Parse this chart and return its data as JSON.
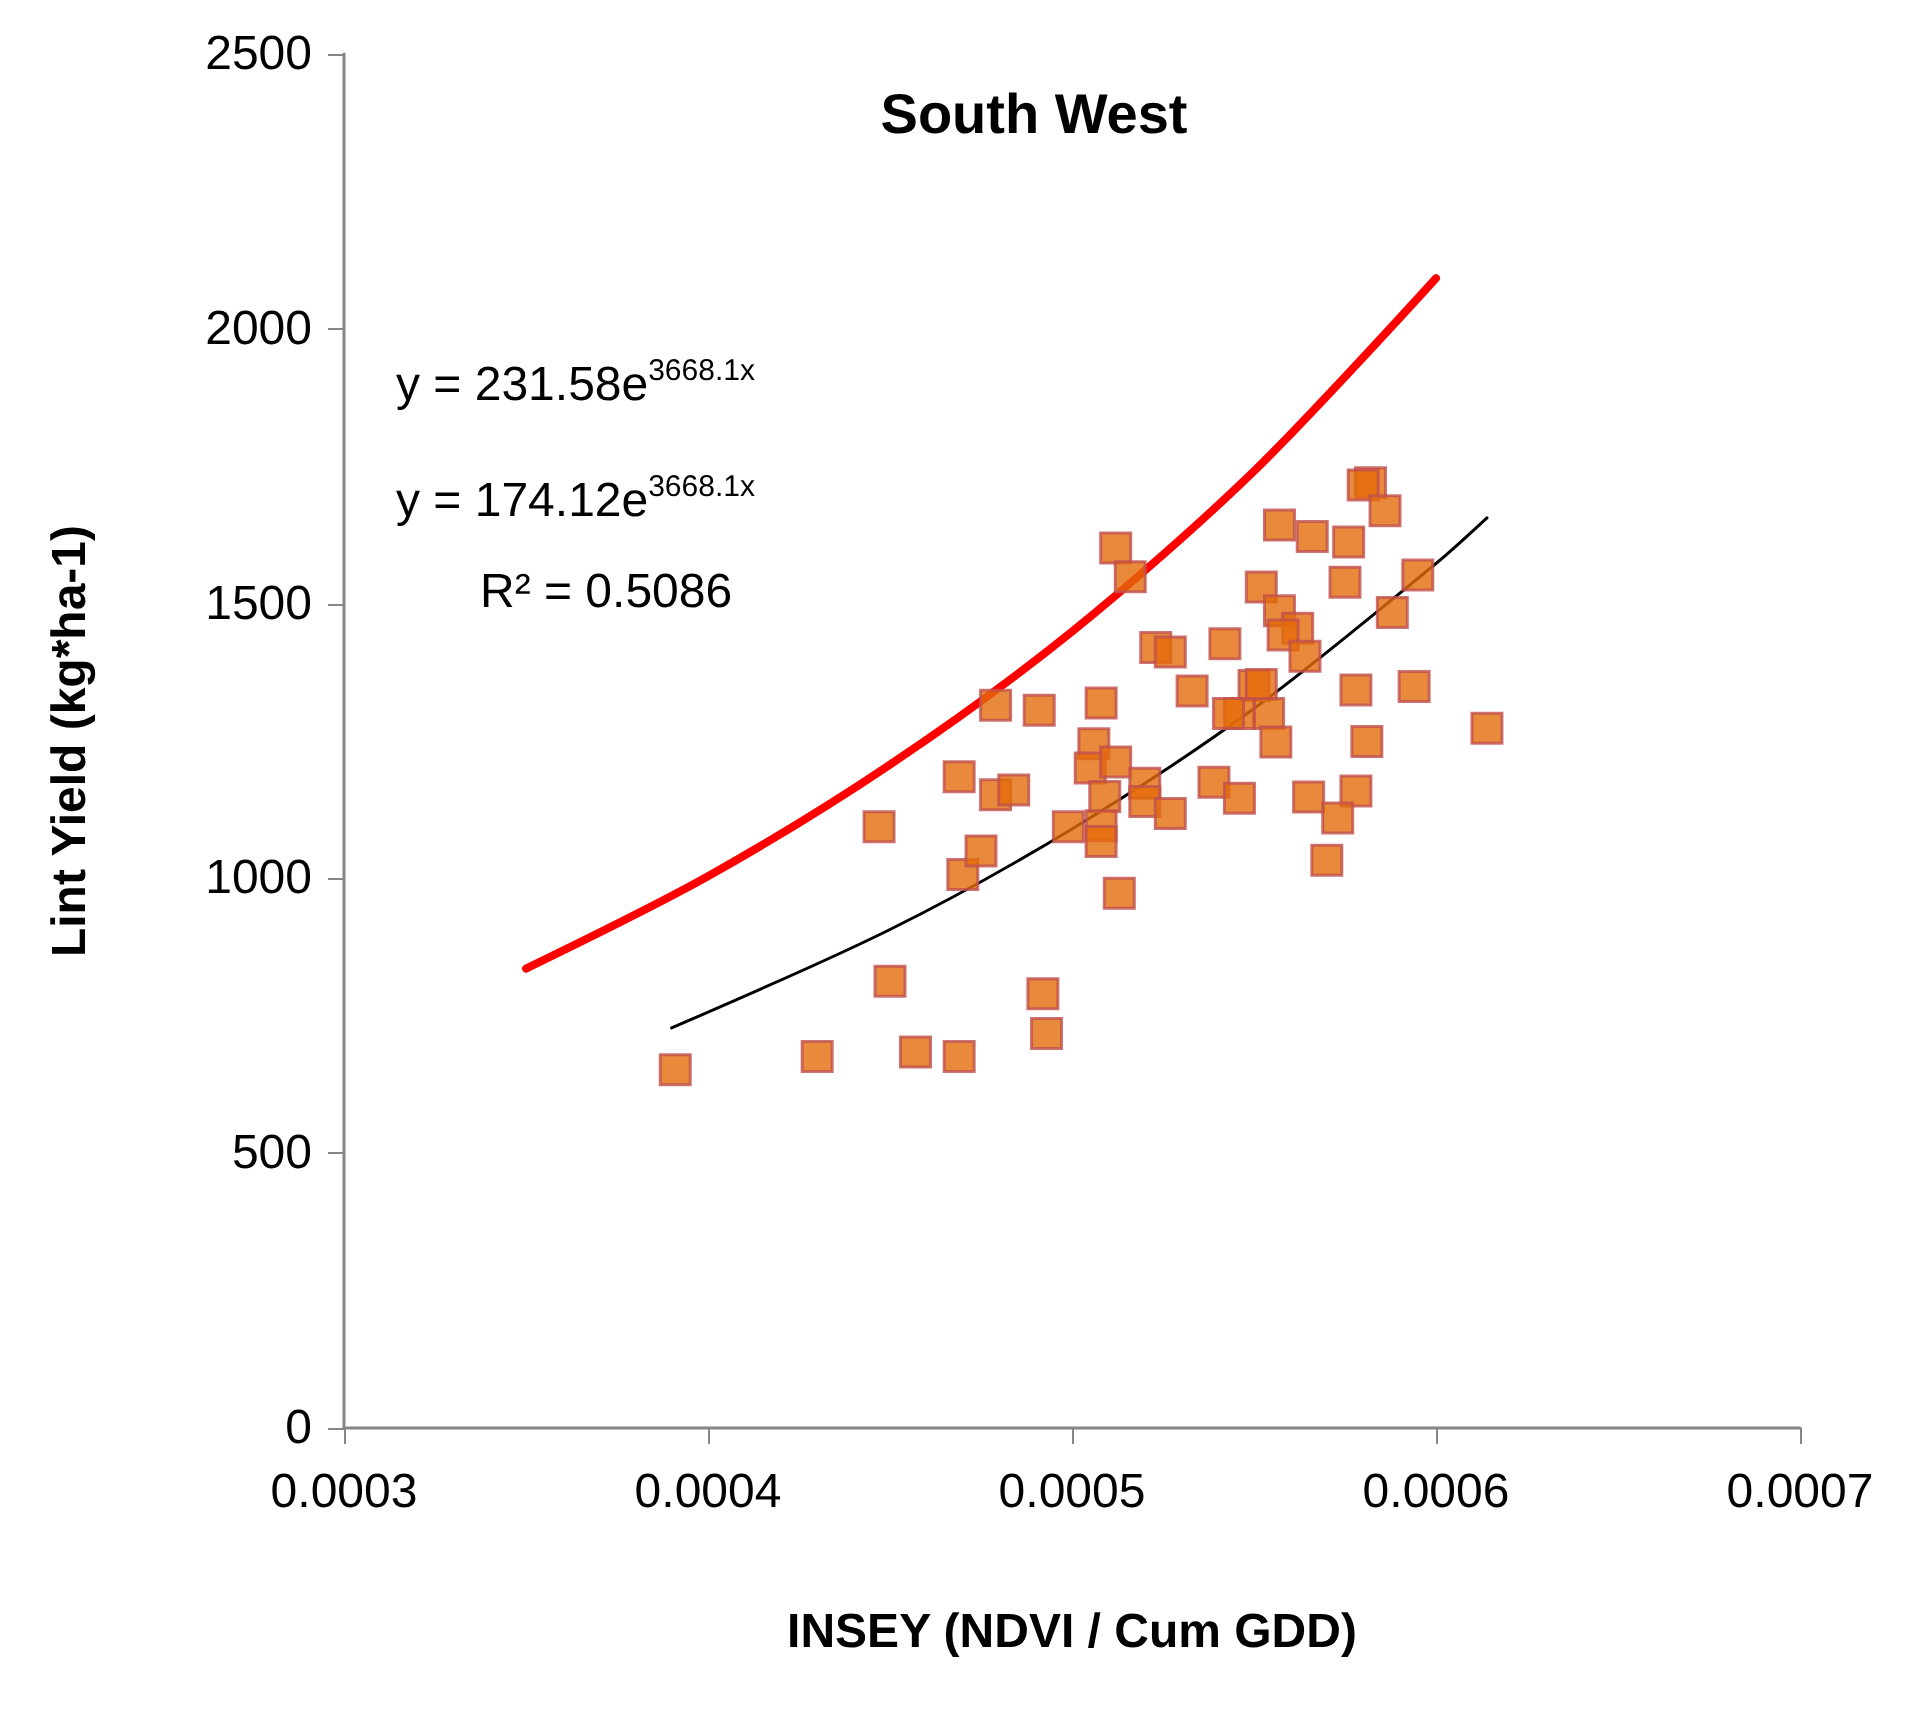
{
  "chart_data": {
    "type": "scatter",
    "title": "South West",
    "xlabel": "INSEY (NDVI / Cum GDD)",
    "ylabel": "Lint Yield (kg*ha-1)",
    "annotations": [
      "y = 231.58e$^{3668.1x}$",
      "y = 174.12e$^{3668.1x}$",
      "R² = 0.5086"
    ],
    "xlim": [
      0.0003,
      0.0007
    ],
    "xticks": [
      0.0003,
      0.0004,
      0.0005,
      0.0006,
      0.0007
    ],
    "ylim": [
      0,
      2500
    ],
    "yticks": [
      0,
      500,
      1000,
      1500,
      2000,
      2500
    ],
    "grid": false,
    "line_style": "solid",
    "series": [
      {
        "marker": "square",
        "color": "#e46c0a",
        "x": [
          0.000391,
          0.00043,
          0.000457,
          0.000469,
          0.000492,
          0.000493,
          0.00045,
          0.000447,
          0.00047,
          0.000475,
          0.000469,
          0.000479,
          0.000484,
          0.000479,
          0.000491,
          0.000508,
          0.000512,
          0.000516,
          0.000499,
          0.000513,
          0.000506,
          0.000505,
          0.000512,
          0.000509,
          0.000508,
          0.000508,
          0.00052,
          0.00052,
          0.000582,
          0.00058,
          0.000586,
          0.000557,
          0.000566,
          0.000576,
          0.000575,
          0.000595,
          0.000552,
          0.000557,
          0.000562,
          0.000558,
          0.000588,
          0.000564,
          0.000523,
          0.000527,
          0.000542,
          0.000533,
          0.00055,
          0.000552,
          0.000554,
          0.000546,
          0.000543,
          0.000556,
          0.000578,
          0.000594,
          0.000614,
          0.000581,
          0.000578,
          0.000565,
          0.000573,
          0.00057,
          0.000539,
          0.000546,
          0.000527
        ],
        "values": [
          652,
          676,
          684,
          676,
          790,
          718,
          813,
          1094,
          1007,
          1050,
          1185,
          1152,
          1161,
          1315,
          1306,
          1319,
          1601,
          1549,
          1094,
          973,
          1245,
          1201,
          1212,
          1149,
          1096,
          1067,
          1173,
          1140,
          1720,
          1716,
          1669,
          1643,
          1622,
          1612,
          1539,
          1552,
          1530,
          1487,
          1455,
          1443,
          1484,
          1404,
          1420,
          1412,
          1427,
          1341,
          1351,
          1353,
          1300,
          1300,
          1300,
          1248,
          1343,
          1349,
          1273,
          1249,
          1159,
          1148,
          1110,
          1033,
          1175,
          1146,
          1118
        ]
      },
      {
        "type": "line",
        "marker": "none",
        "color": "#ff0000",
        "x": [
          0.00035,
          0.0004,
          0.00045,
          0.0005,
          0.00055,
          0.0006
        ],
        "values": [
          836,
          1004,
          1207,
          1449,
          1741,
          2092
        ]
      },
      {
        "type": "line",
        "marker": "none",
        "color": "#000000",
        "x": [
          0.00039,
          0.00045,
          0.0005,
          0.00055,
          0.0006,
          0.000614
        ],
        "values": [
          728,
          907,
          1090,
          1309,
          1573,
          1656
        ]
      }
    ]
  }
}
